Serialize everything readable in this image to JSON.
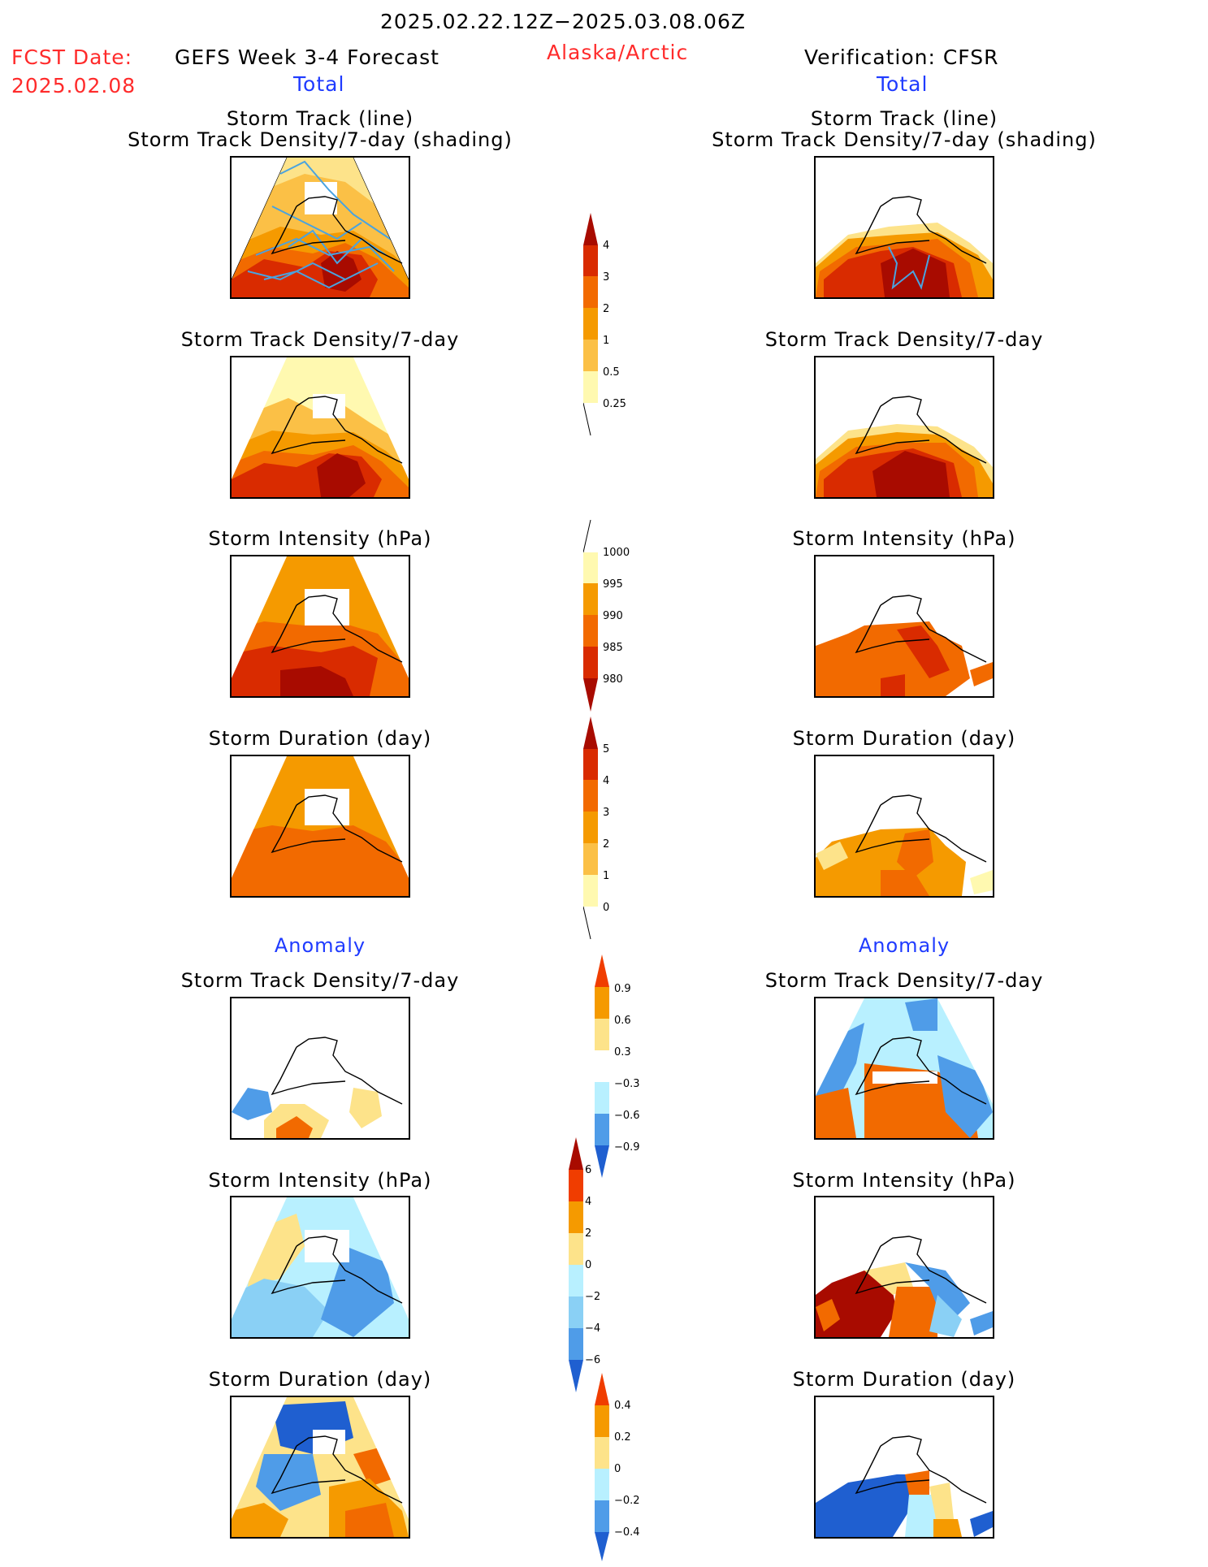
{
  "header": {
    "date_range": "2025.02.22.12Z−2025.03.08.06Z",
    "fcst_label": "FCST Date:",
    "fcst_date": "2025.02.08",
    "left_title": "GEFS Week 3-4 Forecast",
    "region": "Alaska/Arctic",
    "right_title": "Verification: CFSR",
    "left_sub": "Total",
    "right_sub": "Total"
  },
  "titles": {
    "track_line": "Storm Track (line)",
    "track_density_shading": "Storm Track Density/7-day (shading)",
    "track_density": "Storm Track Density/7-day",
    "intensity": "Storm Intensity (hPa)",
    "duration": "Storm Duration (day)",
    "anomaly": "Anomaly"
  },
  "colorbars": {
    "density": [
      "4",
      "3",
      "2",
      "1",
      "0.5",
      "0.25"
    ],
    "intensity": [
      "1000",
      "995",
      "990",
      "985",
      "980"
    ],
    "duration": [
      "5",
      "4",
      "3",
      "2",
      "1",
      "0"
    ],
    "density_anom": [
      "0.9",
      "0.6",
      "0.3",
      "−0.3",
      "−0.6",
      "−0.9"
    ],
    "intensity_anom": [
      "6",
      "4",
      "2",
      "0",
      "−2",
      "−4",
      "−6"
    ],
    "duration_anom": [
      "0.4",
      "0.2",
      "0",
      "−0.2",
      "−0.4"
    ]
  },
  "colors": {
    "warm": [
      "#fff9b0",
      "#fde38a",
      "#fbc046",
      "#f59a00",
      "#f26a00",
      "#d92b00",
      "#a80b00"
    ],
    "cool": [
      "#b8f0ff",
      "#8ad0f5",
      "#4f9ce8",
      "#1f5fd0"
    ]
  }
}
